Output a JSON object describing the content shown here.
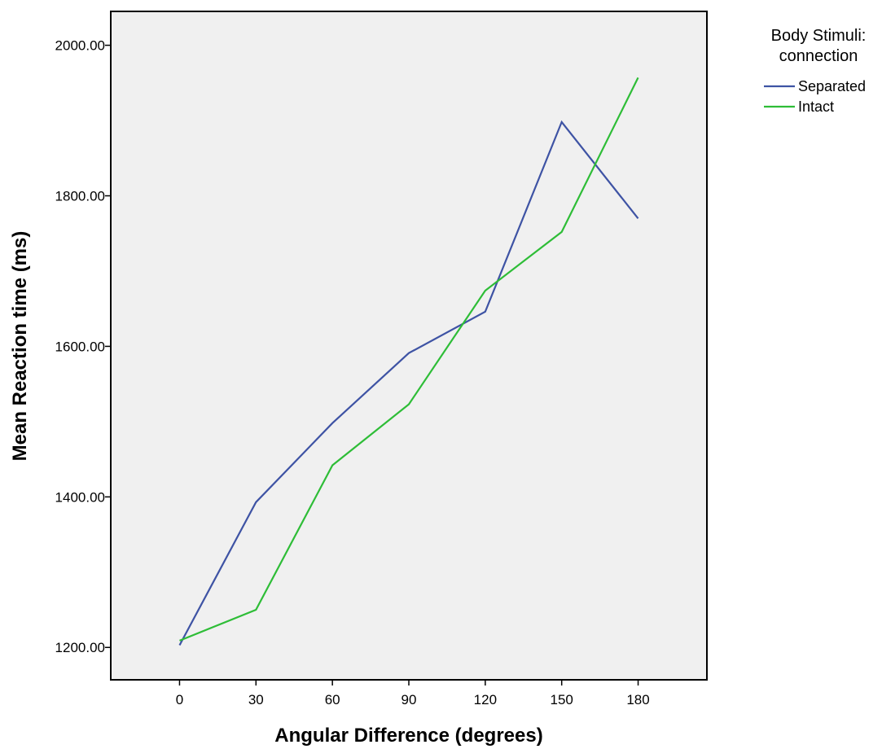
{
  "chart_data": {
    "type": "line",
    "xlabel": "Angular Difference (degrees)",
    "ylabel": "Mean Reaction time (ms)",
    "x": [
      0,
      30,
      60,
      90,
      120,
      150,
      180
    ],
    "x_ticks": [
      "0",
      "30",
      "60",
      "90",
      "120",
      "150",
      "180"
    ],
    "xlim": [
      -27,
      207
    ],
    "y_ticks": [
      "1200.00",
      "1400.00",
      "1600.00",
      "1800.00",
      "2000.00"
    ],
    "ylim": [
      1157,
      2045
    ],
    "grid": false,
    "legend": {
      "title_lines": [
        "Body Stimuli:",
        "connection"
      ],
      "placement": "right"
    },
    "series": [
      {
        "name": "Separated",
        "color": "#3e53a4",
        "values": [
          1203,
          1393,
          1498,
          1591,
          1646,
          1898,
          1770
        ]
      },
      {
        "name": "Intact",
        "color": "#2ebd37",
        "values": [
          1209,
          1250,
          1442,
          1523,
          1674,
          1752,
          1957
        ]
      }
    ],
    "plot_background": "#f0f0f0"
  }
}
